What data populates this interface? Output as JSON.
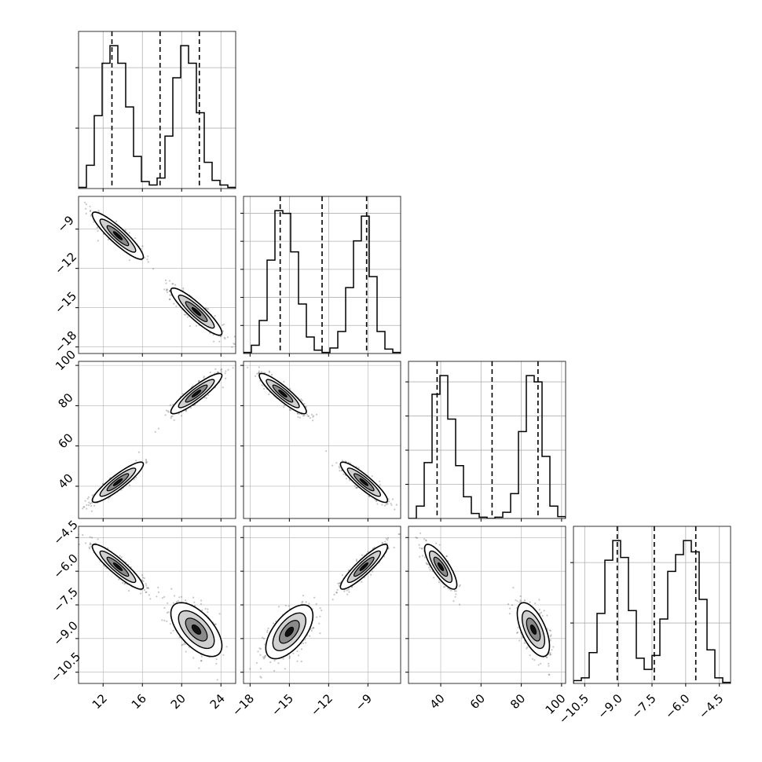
{
  "colors": {
    "axes": "#000000",
    "grid": "#b0b0b0",
    "points": "#000000",
    "contour_fill": "#555555"
  },
  "chart_data": {
    "type": "corner",
    "grid": true,
    "parameters": [
      {
        "range": [
          9.5,
          25.5
        ],
        "ticks": [
          12,
          16,
          20,
          24
        ],
        "tick_labels": [
          "12",
          "16",
          "20",
          "24"
        ],
        "quantiles": [
          12.9,
          17.8,
          21.8
        ]
      },
      {
        "range": [
          -18.5,
          -6.5
        ],
        "ticks": [
          -18,
          -15,
          -12,
          -9
        ],
        "tick_labels": [
          "−18",
          "−15",
          "−12",
          "−9"
        ],
        "quantiles": [
          -15.7,
          -12.5,
          -9.1
        ]
      },
      {
        "range": [
          24,
          102
        ],
        "ticks": [
          40,
          60,
          80,
          100
        ],
        "tick_labels": [
          "40",
          "60",
          "80",
          "100"
        ],
        "quantiles": [
          38.2,
          65.5,
          88.3
        ]
      },
      {
        "range": [
          -11.0,
          -4.0
        ],
        "ticks": [
          -10.5,
          -9.0,
          -7.5,
          -6.0,
          -4.5
        ],
        "tick_labels": [
          "−10.5",
          "−9.0",
          "−7.5",
          "−6.0",
          "−4.5"
        ],
        "quantiles": [
          -9.05,
          -7.4,
          -5.55
        ]
      }
    ],
    "histograms": [
      {
        "parameter": 0,
        "bin_edges": [
          9.5,
          10.3,
          11.1,
          11.9,
          12.7,
          13.5,
          14.3,
          15.1,
          15.9,
          16.7,
          17.5,
          18.3,
          19.1,
          19.9,
          20.7,
          21.5,
          22.3,
          23.1,
          23.9,
          24.7,
          25.5
        ],
        "counts": [
          2,
          40,
          125,
          215,
          245,
          215,
          140,
          55,
          12,
          6,
          18,
          90,
          190,
          245,
          215,
          130,
          45,
          14,
          6,
          2
        ]
      },
      {
        "parameter": 1,
        "bin_edges": [
          -18.5,
          -17.9,
          -17.3,
          -16.7,
          -16.1,
          -15.5,
          -14.9,
          -14.3,
          -13.7,
          -13.1,
          -12.5,
          -11.9,
          -11.3,
          -10.7,
          -10.1,
          -9.5,
          -8.9,
          -8.3,
          -7.7,
          -7.1,
          -6.5
        ],
        "counts": [
          2,
          15,
          60,
          170,
          260,
          255,
          185,
          90,
          30,
          6,
          2,
          10,
          40,
          120,
          205,
          250,
          140,
          40,
          8,
          2
        ]
      },
      {
        "parameter": 2,
        "bin_edges": [
          24,
          27.9,
          31.8,
          35.7,
          39.6,
          43.5,
          47.4,
          51.3,
          55.2,
          59.1,
          63,
          66.9,
          70.8,
          74.7,
          78.6,
          82.5,
          86.4,
          90.3,
          94.2,
          98.1,
          102
        ],
        "counts": [
          0,
          20,
          90,
          200,
          230,
          160,
          85,
          35,
          8,
          2,
          0,
          2,
          10,
          40,
          140,
          230,
          220,
          100,
          20,
          3
        ]
      },
      {
        "parameter": 3,
        "bin_edges": [
          -11.0,
          -10.65,
          -10.3,
          -9.95,
          -9.6,
          -9.25,
          -8.9,
          -8.55,
          -8.2,
          -7.85,
          -7.5,
          -7.15,
          -6.8,
          -6.45,
          -6.1,
          -5.75,
          -5.4,
          -5.05,
          -4.7,
          -4.35,
          -4.0
        ],
        "counts": [
          5,
          10,
          55,
          125,
          220,
          255,
          225,
          130,
          45,
          25,
          50,
          115,
          200,
          230,
          255,
          235,
          150,
          60,
          10,
          2
        ]
      }
    ],
    "scatter_panels": [
      {
        "x_param": 0,
        "y_param": 1,
        "clusters": [
          {
            "mean": [
              13.5,
              -9.5
            ],
            "sd": [
              1.3,
              0.9
            ],
            "rho": -0.9,
            "n": 400
          },
          {
            "mean": [
              21.5,
              -15.3
            ],
            "sd": [
              1.3,
              0.9
            ],
            "rho": -0.9,
            "n": 400
          }
        ]
      },
      {
        "x_param": 0,
        "y_param": 2,
        "clusters": [
          {
            "mean": [
              13.5,
              42
            ],
            "sd": [
              1.3,
              5
            ],
            "rho": 0.9,
            "n": 400
          },
          {
            "mean": [
              21.5,
              86
            ],
            "sd": [
              1.3,
              5
            ],
            "rho": 0.9,
            "n": 400
          }
        ]
      },
      {
        "x_param": 1,
        "y_param": 2,
        "clusters": [
          {
            "mean": [
              -15.5,
              86
            ],
            "sd": [
              0.9,
              5
            ],
            "rho": -0.9,
            "n": 400
          },
          {
            "mean": [
              -9.3,
              42
            ],
            "sd": [
              0.9,
              5
            ],
            "rho": -0.9,
            "n": 400
          }
        ]
      },
      {
        "x_param": 0,
        "y_param": 3,
        "clusters": [
          {
            "mean": [
              13.5,
              -5.8
            ],
            "sd": [
              1.3,
              0.5
            ],
            "rho": -0.9,
            "n": 400
          },
          {
            "mean": [
              21.5,
              -8.6
            ],
            "sd": [
              1.3,
              0.6
            ],
            "rho": -0.6,
            "n": 400
          }
        ]
      },
      {
        "x_param": 1,
        "y_param": 3,
        "clusters": [
          {
            "mean": [
              -15.0,
              -8.7
            ],
            "sd": [
              0.9,
              0.6
            ],
            "rho": 0.6,
            "n": 400
          },
          {
            "mean": [
              -9.3,
              -5.8
            ],
            "sd": [
              0.9,
              0.5
            ],
            "rho": 0.9,
            "n": 400
          }
        ]
      },
      {
        "x_param": 2,
        "y_param": 3,
        "clusters": [
          {
            "mean": [
              40,
              -5.8
            ],
            "sd": [
              4,
              0.5
            ],
            "rho": -0.8,
            "n": 400
          },
          {
            "mean": [
              86,
              -8.6
            ],
            "sd": [
              4,
              0.6
            ],
            "rho": -0.6,
            "n": 400
          }
        ]
      }
    ]
  }
}
